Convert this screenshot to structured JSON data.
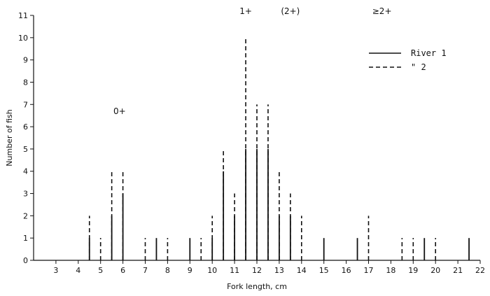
{
  "chart_data": {
    "type": "bar",
    "xlabel": "Fork length, cm",
    "ylabel": "Number of fish",
    "xlim": [
      2,
      22
    ],
    "ylim": [
      0,
      11
    ],
    "x_ticks": [
      3,
      4,
      5,
      6,
      7,
      8,
      9,
      10,
      11,
      12,
      13,
      14,
      15,
      16,
      17,
      18,
      19,
      20,
      21,
      22
    ],
    "y_ticks": [
      0,
      1,
      2,
      3,
      4,
      5,
      6,
      7,
      8,
      9,
      10,
      11
    ],
    "annotations": [
      {
        "text": "0+",
        "x": 5.85,
        "y": 6.5
      },
      {
        "text": "1+",
        "x": 11.5,
        "y": 11.0
      },
      {
        "text": "(2+)",
        "x": 13.5,
        "y": 11.0
      },
      {
        "text": "≥2+",
        "x": 17.6,
        "y": 11.0
      }
    ],
    "legend": {
      "placement": "top-right",
      "entries": [
        {
          "label": "River 1",
          "style": "solid"
        },
        {
          "label": "\"  2",
          "style": "dashed"
        }
      ]
    },
    "series": [
      {
        "label": "River 1",
        "style": "solid",
        "x": [
          4.5,
          5.5,
          6,
          7.5,
          9,
          10,
          10.5,
          11,
          11.5,
          12,
          12.5,
          13,
          13.5,
          15,
          16.5,
          19.5,
          21.5
        ],
        "y": [
          1,
          2,
          3,
          1,
          1,
          1,
          4,
          2,
          5,
          5,
          5,
          2,
          2,
          1,
          1,
          1,
          1
        ]
      },
      {
        "label": "River 2",
        "style": "dashed",
        "x": [
          4.5,
          5,
          5.5,
          6,
          7,
          8,
          9.5,
          10,
          10.5,
          11,
          11.5,
          12,
          12.5,
          13,
          13.5,
          14,
          17,
          18.5,
          19,
          20
        ],
        "y": [
          2,
          1,
          4,
          4,
          1,
          1,
          1,
          2,
          5,
          3,
          10,
          7,
          7,
          4,
          3,
          2,
          2,
          1,
          1,
          1
        ]
      }
    ]
  }
}
